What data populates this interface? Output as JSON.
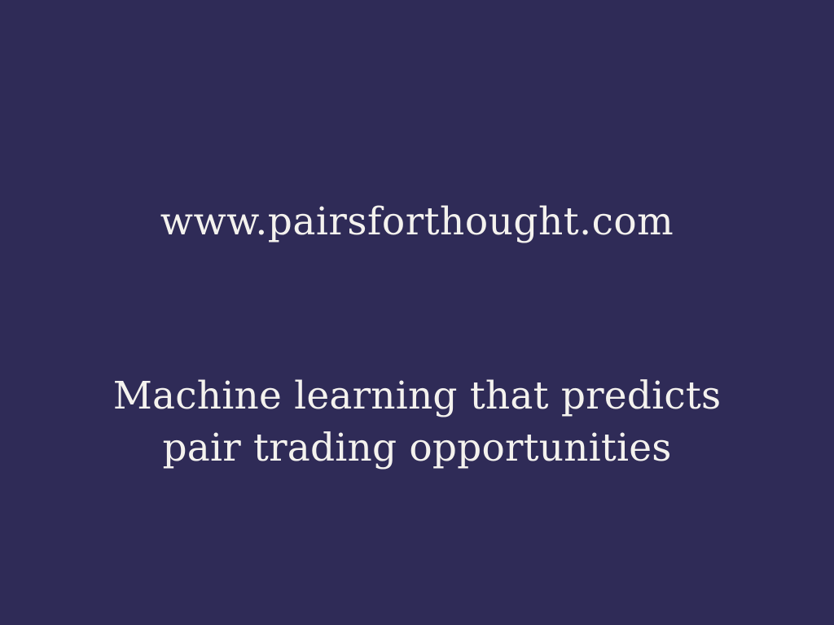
{
  "slide": {
    "background_color": "#2f2b57",
    "text_color": "#f4f2ee",
    "url": "www.pairsforthought.com",
    "tagline": {
      "line1": "Machine learning that predicts",
      "line2": "pair trading opportunities"
    }
  }
}
